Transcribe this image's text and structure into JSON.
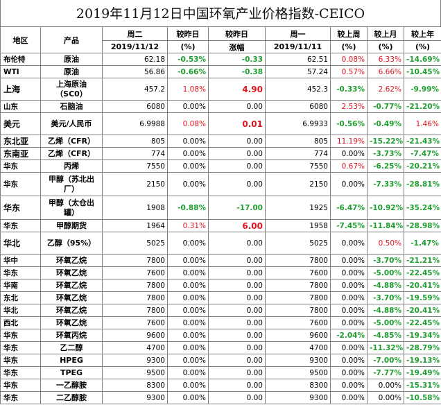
{
  "title": "2019年11月12日中国环氧产业价格指数-CEICO",
  "colors": {
    "negative": "#1e9e2e",
    "positive": "#e0141e",
    "neutral": "#000000"
  },
  "headers": {
    "region": "地区",
    "product": "产品",
    "tuesday": "周二",
    "tuesday_date": "2019/11/12",
    "vs_yesterday_pct": "较昨日",
    "vs_yesterday_pct_unit": "(%)",
    "vs_yesterday_abs": "较昨日",
    "vs_yesterday_abs_unit": "涨幅",
    "monday": "周一",
    "monday_date": "2019/11/11",
    "vs_last_week": "较上周",
    "vs_last_week_unit": "(%)",
    "vs_last_month": "较上月",
    "vs_last_month_unit": "(%)",
    "vs_last_year": "较上年",
    "vs_last_year_unit": "(%)"
  },
  "rows": [
    {
      "region": "布伦特",
      "product": "原油",
      "tue": "62.18",
      "d_pct": "-0.53%",
      "d_abs": "-0.33",
      "mon": "62.51",
      "wk": "0.08%",
      "mo": "6.33%",
      "yr": "-14.69%",
      "wrap": false,
      "h": 18
    },
    {
      "region": "WTI",
      "product": "原油",
      "tue": "56.86",
      "d_pct": "-0.66%",
      "d_abs": "-0.38",
      "mon": "57.24",
      "wk": "0.57%",
      "mo": "6.66%",
      "yr": "-10.45%",
      "wrap": false,
      "h": 18
    },
    {
      "region": "上海",
      "product": "上海原油（SC0）",
      "tue": "457.2",
      "d_pct": "1.08%",
      "d_abs": "4.90",
      "mon": "452.3",
      "wk": "-0.33%",
      "mo": "2.62%",
      "yr": "-9.99%",
      "wrap": true,
      "h": 32,
      "bigregion": true
    },
    {
      "region": "山东",
      "product": "石脑油",
      "tue": "6080",
      "d_pct": "0.00%",
      "d_abs": "0.00",
      "mon": "6080",
      "wk": "2.53%",
      "mo": "-0.77%",
      "yr": "-21.20%",
      "wrap": false,
      "h": 18
    },
    {
      "region": "美元",
      "product": "美元/人民币",
      "tue": "6.9988",
      "d_pct": "0.08%",
      "d_abs": "0.01",
      "mon": "6.9933",
      "wk": "-0.56%",
      "mo": "-0.49%",
      "yr": "1.46%",
      "wrap": true,
      "h": 32,
      "bigregion": true
    },
    {
      "region": "东北亚",
      "product": "乙烯（CFR）",
      "tue": "805",
      "d_pct": "0.00%",
      "d_abs": "0.00",
      "mon": "805",
      "wk": "11.19%",
      "mo": "-15.22%",
      "yr": "-21.43%",
      "wrap": false,
      "h": 18,
      "bigregion": true
    },
    {
      "region": "东南亚",
      "product": "乙烯（CFR）",
      "tue": "774",
      "d_pct": "0.00%",
      "d_abs": "0.00",
      "mon": "774",
      "wk": "0.00%",
      "mo": "-3.73%",
      "yr": "-7.47%",
      "wrap": false,
      "h": 18,
      "bigregion": true
    },
    {
      "region": "华东",
      "product": "丙烯",
      "tue": "7550",
      "d_pct": "0.00%",
      "d_abs": "0.00",
      "mon": "7550",
      "wk": "0.67%",
      "mo": "-6.25%",
      "yr": "-20.21%",
      "wrap": false,
      "h": 18
    },
    {
      "region": "华东",
      "product": "甲醇（苏北出厂）",
      "tue": "2150",
      "d_pct": "0.00%",
      "d_abs": "0.00",
      "mon": "2150",
      "wk": "0.00%",
      "mo": "-7.33%",
      "yr": "-28.81%",
      "wrap": true,
      "h": 34
    },
    {
      "region": "华东",
      "product": "甲醇（太仓出罐）",
      "tue": "1908",
      "d_pct": "-0.88%",
      "d_abs": "-17.00",
      "mon": "1925",
      "wk": "-6.47%",
      "mo": "-10.92%",
      "yr": "-35.24%",
      "wrap": true,
      "h": 34,
      "bigregion": true
    },
    {
      "region": "华东",
      "product": "甲醇期货",
      "tue": "1964",
      "d_pct": "0.31%",
      "d_abs": "6.00",
      "mon": "1958",
      "wk": "-7.45%",
      "mo": "-11.84%",
      "yr": "-28.98%",
      "wrap": false,
      "h": 18
    },
    {
      "region": "华北",
      "product": "乙醇（95%）",
      "tue": "5025",
      "d_pct": "0.00%",
      "d_abs": "0.00",
      "mon": "5025",
      "wk": "0.00%",
      "mo": "0.50%",
      "yr": "-1.47%",
      "wrap": true,
      "h": 32,
      "bigregion": true
    },
    {
      "region": "华中",
      "product": "环氧乙烷",
      "tue": "7800",
      "d_pct": "0.00%",
      "d_abs": "0.00",
      "mon": "7800",
      "wk": "0.00%",
      "mo": "-3.70%",
      "yr": "-21.21%",
      "wrap": false,
      "h": 18
    },
    {
      "region": "华东",
      "product": "环氧乙烷",
      "tue": "7600",
      "d_pct": "0.00%",
      "d_abs": "0.00",
      "mon": "7600",
      "wk": "0.00%",
      "mo": "-5.00%",
      "yr": "-22.45%",
      "wrap": false,
      "h": 18
    },
    {
      "region": "华南",
      "product": "环氧乙烷",
      "tue": "7800",
      "d_pct": "0.00%",
      "d_abs": "0.00",
      "mon": "7800",
      "wk": "0.00%",
      "mo": "-4.88%",
      "yr": "-20.41%",
      "wrap": false,
      "h": 18
    },
    {
      "region": "东北",
      "product": "环氧乙烷",
      "tue": "7800",
      "d_pct": "0.00%",
      "d_abs": "0.00",
      "mon": "7800",
      "wk": "0.00%",
      "mo": "-3.70%",
      "yr": "-19.59%",
      "wrap": false,
      "h": 18
    },
    {
      "region": "华北",
      "product": "环氧乙烷",
      "tue": "7800",
      "d_pct": "0.00%",
      "d_abs": "0.00",
      "mon": "7800",
      "wk": "0.00%",
      "mo": "-4.88%",
      "yr": "-20.41%",
      "wrap": false,
      "h": 18
    },
    {
      "region": "西北",
      "product": "环氧乙烷",
      "tue": "7600",
      "d_pct": "0.00%",
      "d_abs": "0.00",
      "mon": "7600",
      "wk": "0.00%",
      "mo": "-5.00%",
      "yr": "-22.45%",
      "wrap": false,
      "h": 18
    },
    {
      "region": "华东",
      "product": "环氧丙烷",
      "tue": "9600",
      "d_pct": "0.00%",
      "d_abs": "0.00",
      "mon": "9600",
      "wk": "-2.04%",
      "mo": "-4.85%",
      "yr": "-19.34%",
      "wrap": false,
      "h": 18
    },
    {
      "region": "华东",
      "product": "乙二醇",
      "tue": "4700",
      "d_pct": "0.00%",
      "d_abs": "0.00",
      "mon": "4700",
      "wk": "0.00%",
      "mo": "-11.32%",
      "yr": "-28.79%",
      "wrap": false,
      "h": 18
    },
    {
      "region": "华东",
      "product": "HPEG",
      "tue": "9300",
      "d_pct": "0.00%",
      "d_abs": "0.00",
      "mon": "9300",
      "wk": "0.00%",
      "mo": "-7.00%",
      "yr": "-19.13%",
      "wrap": false,
      "h": 18
    },
    {
      "region": "华东",
      "product": "TPEG",
      "tue": "9500",
      "d_pct": "0.00%",
      "d_abs": "0.00",
      "mon": "9500",
      "wk": "0.00%",
      "mo": "-7.77%",
      "yr": "-19.49%",
      "wrap": false,
      "h": 18
    },
    {
      "region": "华东",
      "product": "一乙醇胺",
      "tue": "8300",
      "d_pct": "0.00%",
      "d_abs": "0.00",
      "mon": "8300",
      "wk": "0.00%",
      "mo": "0.00%",
      "yr": "-15.31%",
      "wrap": false,
      "h": 18
    },
    {
      "region": "华东",
      "product": "二乙醇胺",
      "tue": "9300",
      "d_pct": "0.00%",
      "d_abs": "0.00",
      "mon": "9300",
      "wk": "0.00%",
      "mo": "0.00%",
      "yr": "-10.58%",
      "wrap": false,
      "h": 18
    }
  ]
}
